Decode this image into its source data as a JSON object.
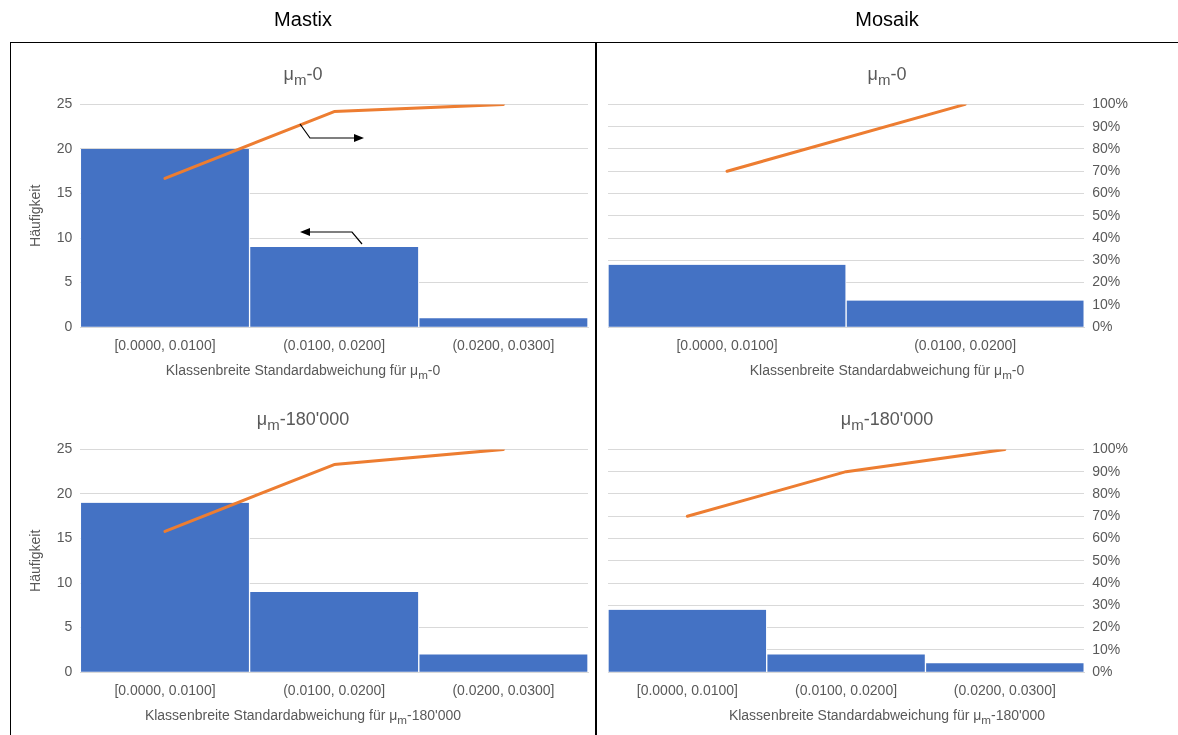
{
  "chart_data": [
    {
      "type": "bar",
      "title": "μ$_{m}$-0",
      "annotations": [
        "Mastix"
      ],
      "xlabel": "Klassenbreite Standardabweichung für μ$_{m}$-0",
      "ylabel": "Häufigkeit",
      "categories": [
        "[0.0000, 0.0100]",
        "(0.0100, 0.0200]",
        "(0.0200, 0.0300]"
      ],
      "series": [
        {
          "color": "#4472c4",
          "values": [
            20,
            9,
            1
          ]
        },
        {
          "type": "line",
          "color": "#ed7d31",
          "values": [
            16.7,
            24.2,
            25
          ]
        }
      ],
      "ylim": [
        0,
        25
      ],
      "yticks": [
        0,
        5,
        10,
        15,
        20,
        25
      ],
      "grid": "y"
    },
    {
      "type": "bar",
      "title": "μ$_{m}$-0",
      "annotations": [
        "Mosaik"
      ],
      "xlabel": "Klassenbreite Standardabweichung für μ$_{m}$-0",
      "categories": [
        "[0.0000, 0.0100]",
        "(0.0100, 0.0200]"
      ],
      "series": [
        {
          "axis": "y2",
          "color": "#4472c4",
          "values": [
            28,
            12
          ]
        },
        {
          "type": "line",
          "axis": "y2",
          "color": "#ed7d31",
          "values": [
            70,
            100
          ]
        }
      ],
      "y2lim": [
        0,
        100
      ],
      "y2ticks": [
        {
          "value": 0,
          "label": "0%"
        },
        {
          "value": 10,
          "label": "10%"
        },
        {
          "value": 20,
          "label": "20%"
        },
        {
          "value": 30,
          "label": "30%"
        },
        {
          "value": 40,
          "label": "40%"
        },
        {
          "value": 50,
          "label": "50%"
        },
        {
          "value": 60,
          "label": "60%"
        },
        {
          "value": 70,
          "label": "70%"
        },
        {
          "value": 80,
          "label": "80%"
        },
        {
          "value": 90,
          "label": "90%"
        },
        {
          "value": 100,
          "label": "100%"
        }
      ],
      "grid": "y"
    },
    {
      "type": "bar",
      "title": "μ$_{m}$-180'000",
      "xlabel": "Klassenbreite Standardabweichung für μ$_{m}$-180'000",
      "ylabel": "Häufigkeit",
      "categories": [
        "[0.0000, 0.0100]",
        "(0.0100, 0.0200]",
        "(0.0200, 0.0300]"
      ],
      "series": [
        {
          "color": "#4472c4",
          "values": [
            19,
            9,
            2
          ]
        },
        {
          "type": "line",
          "color": "#ed7d31",
          "values": [
            15.8,
            23.3,
            25
          ]
        }
      ],
      "ylim": [
        0,
        25
      ],
      "yticks": [
        0,
        5,
        10,
        15,
        20,
        25
      ],
      "grid": "y"
    },
    {
      "type": "bar",
      "title": "μ$_{m}$-180'000",
      "xlabel": "Klassenbreite Standardabweichung für μ$_{m}$-180'000",
      "categories": [
        "[0.0000, 0.0100]",
        "(0.0100, 0.0200]",
        "(0.0200, 0.0300]"
      ],
      "series": [
        {
          "axis": "y2",
          "color": "#4472c4",
          "values": [
            28,
            8,
            4
          ]
        },
        {
          "type": "line",
          "axis": "y2",
          "color": "#ed7d31",
          "values": [
            70,
            90,
            100
          ]
        }
      ],
      "y2lim": [
        0,
        100
      ],
      "y2ticks": [
        {
          "value": 0,
          "label": "0%"
        },
        {
          "value": 10,
          "label": "10%"
        },
        {
          "value": 20,
          "label": "20%"
        },
        {
          "value": 30,
          "label": "30%"
        },
        {
          "value": 40,
          "label": "40%"
        },
        {
          "value": 50,
          "label": "50%"
        },
        {
          "value": 60,
          "label": "60%"
        },
        {
          "value": 70,
          "label": "70%"
        },
        {
          "value": 80,
          "label": "80%"
        },
        {
          "value": 90,
          "label": "90%"
        },
        {
          "value": 100,
          "label": "100%"
        }
      ],
      "grid": "y"
    }
  ]
}
